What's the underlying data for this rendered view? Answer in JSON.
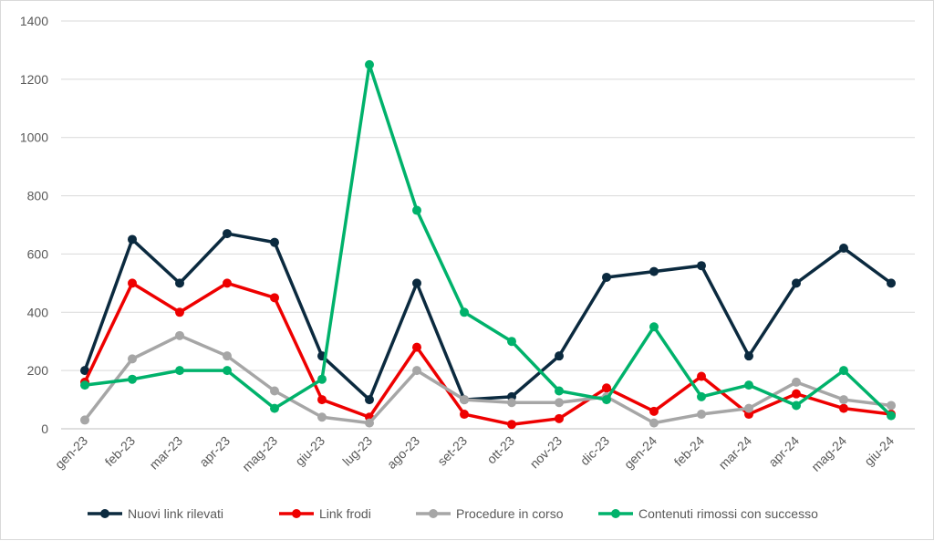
{
  "chart_data": {
    "type": "line",
    "title": "",
    "xlabel": "",
    "ylabel": "",
    "ylim": [
      0,
      1400
    ],
    "y_ticks": [
      "0",
      "200",
      "400",
      "600",
      "800",
      "1000",
      "1200",
      "1400"
    ],
    "grid": true,
    "legend_position": "bottom",
    "categories": [
      "gen-23",
      "feb-23",
      "mar-23",
      "apr-23",
      "mag-23",
      "giu-23",
      "lug-23",
      "ago-23",
      "set-23",
      "ott-23",
      "nov-23",
      "dic-23",
      "gen-24",
      "feb-24",
      "mar-24",
      "apr-24",
      "mag-24",
      "giu-24"
    ],
    "series": [
      {
        "name": "Nuovi link rilevati",
        "color": "#0b2a3f",
        "values": [
          200,
          650,
          500,
          670,
          640,
          250,
          100,
          500,
          100,
          110,
          250,
          520,
          540,
          560,
          250,
          500,
          620,
          500
        ]
      },
      {
        "name": "Link frodi",
        "color": "#ee0000",
        "values": [
          160,
          500,
          400,
          500,
          450,
          100,
          40,
          280,
          50,
          15,
          35,
          140,
          60,
          180,
          50,
          120,
          70,
          50
        ]
      },
      {
        "name": "Procedure in corso",
        "color": "#a6a6a6",
        "values": [
          30,
          240,
          320,
          250,
          130,
          40,
          20,
          200,
          100,
          90,
          90,
          110,
          20,
          50,
          70,
          160,
          100,
          80
        ]
      },
      {
        "name": "Contenuti rimossi con successo",
        "color": "#00b26b",
        "values": [
          150,
          170,
          200,
          200,
          70,
          170,
          1250,
          750,
          400,
          300,
          130,
          100,
          350,
          110,
          150,
          80,
          200,
          45
        ]
      }
    ]
  }
}
